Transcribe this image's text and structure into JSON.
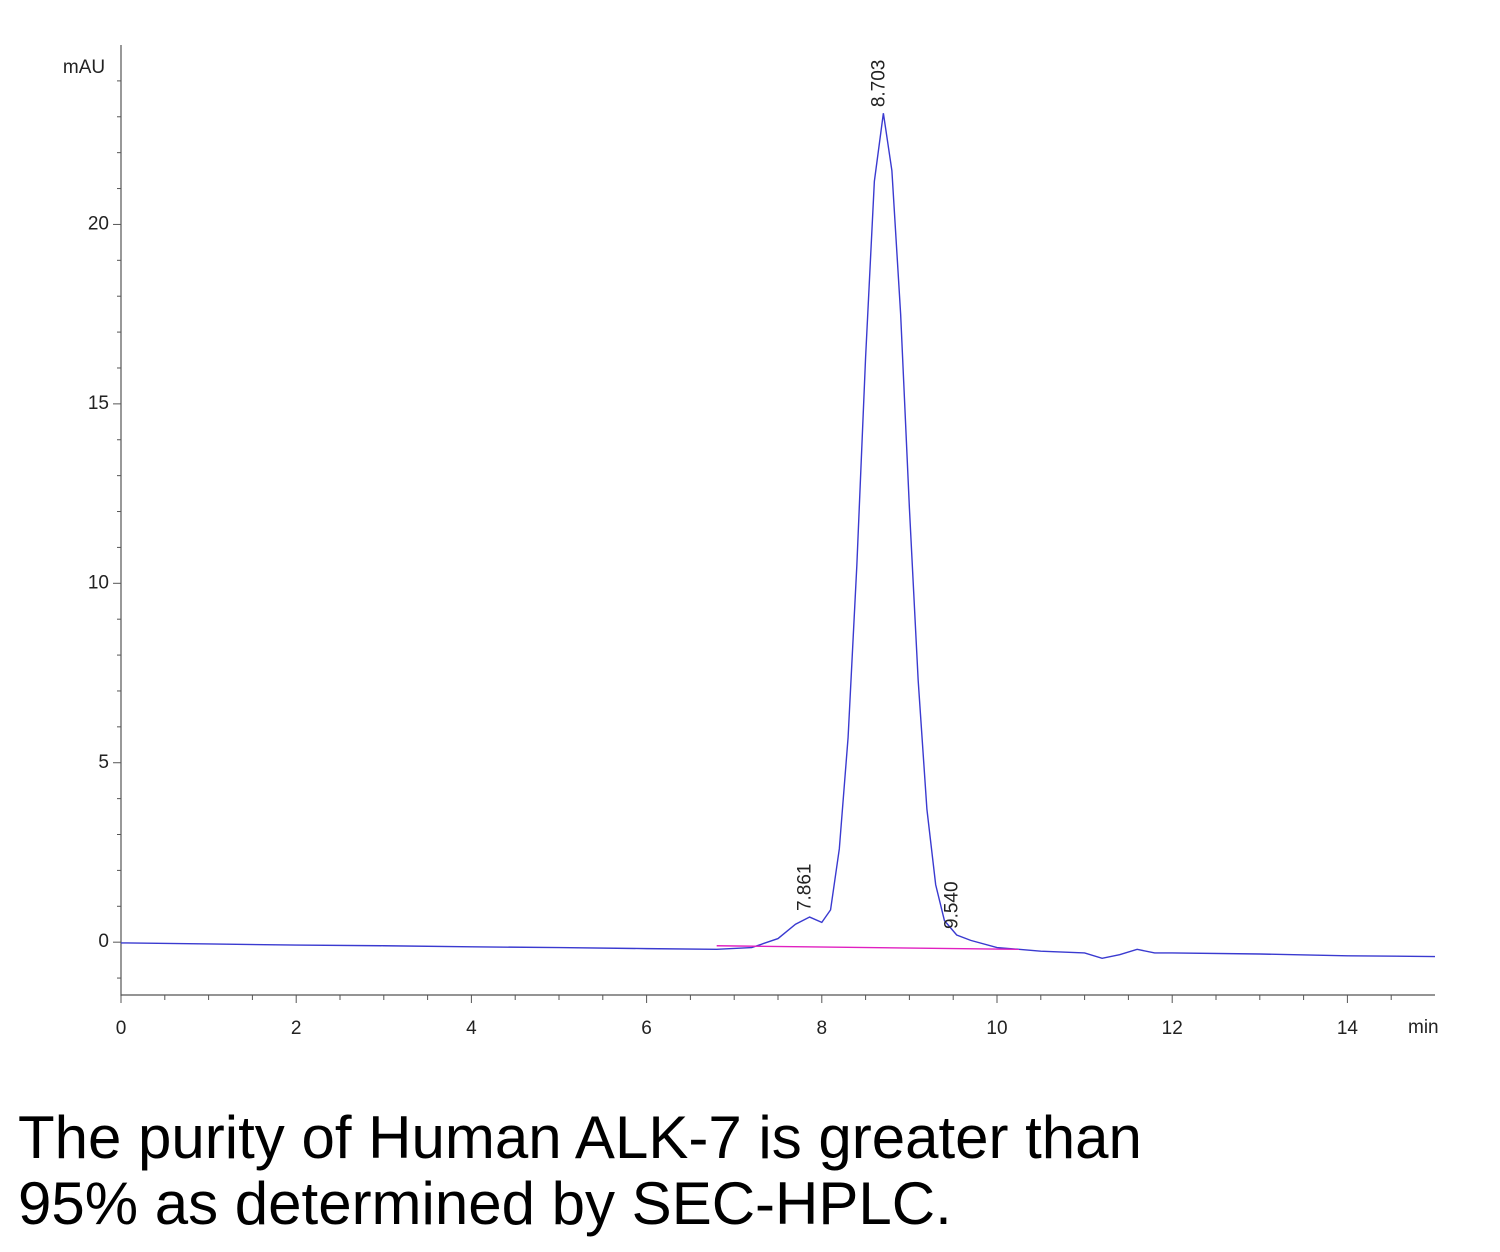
{
  "chart_data": {
    "type": "line",
    "ylabel": "mAU",
    "xlabel": "min",
    "xlim": [
      0,
      15
    ],
    "ylim": [
      -1.5,
      25
    ],
    "xticks": [
      0,
      2,
      4,
      6,
      8,
      10,
      12,
      14
    ],
    "xminorticks": [
      0.5,
      1,
      1.5,
      2.5,
      3,
      3.5,
      4.5,
      5,
      5.5,
      6.5,
      7,
      7.5,
      8.5,
      9,
      9.5,
      10.5,
      11,
      11.5,
      12.5,
      13,
      13.5,
      14.5
    ],
    "yticks": [
      0,
      5,
      10,
      15,
      20
    ],
    "yminorticks": [
      -1,
      1,
      2,
      3,
      4,
      6,
      7,
      8,
      9,
      11,
      12,
      13,
      14,
      16,
      17,
      18,
      19,
      21,
      22,
      23,
      24
    ],
    "series": [
      {
        "color": "#3a3ad0",
        "x": [
          0,
          1,
          2,
          3,
          4,
          5,
          6,
          6.8,
          7.2,
          7.5,
          7.7,
          7.861,
          8.0,
          8.1,
          8.2,
          8.3,
          8.4,
          8.5,
          8.6,
          8.703,
          8.8,
          8.9,
          9.0,
          9.1,
          9.2,
          9.3,
          9.4,
          9.54,
          9.7,
          10,
          10.5,
          11,
          11.2,
          11.4,
          11.6,
          11.8,
          12,
          13,
          14,
          15
        ],
        "values": [
          -0.02,
          -0.05,
          -0.08,
          -0.1,
          -0.13,
          -0.15,
          -0.18,
          -0.2,
          -0.15,
          0.1,
          0.5,
          0.7,
          0.55,
          0.9,
          2.6,
          5.7,
          10.5,
          16.3,
          21.2,
          23.1,
          21.5,
          17.5,
          12.1,
          7.3,
          3.7,
          1.6,
          0.6,
          0.2,
          0.05,
          -0.15,
          -0.25,
          -0.3,
          -0.45,
          -0.35,
          -0.2,
          -0.3,
          -0.3,
          -0.33,
          -0.38,
          -0.4
        ]
      },
      {
        "color": "#e020c0",
        "x": [
          6.8,
          10.25
        ],
        "values": [
          -0.1,
          -0.2
        ]
      }
    ],
    "peaks": [
      {
        "value": 7.861,
        "label": "7.861"
      },
      {
        "value": 8.703,
        "label": "8.703"
      },
      {
        "value": 9.54,
        "label": "9.540"
      }
    ]
  },
  "caption": "The purity of Human ALK-7 is greater than 95% as determined by SEC-HPLC."
}
